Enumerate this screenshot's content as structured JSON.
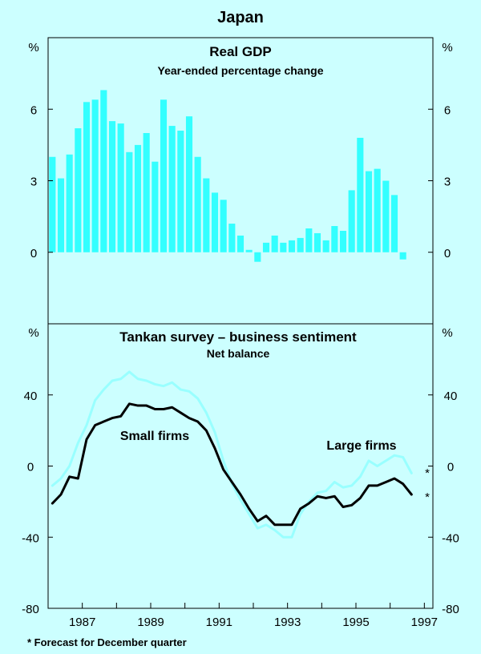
{
  "page_title": "Japan",
  "footnote": "*   Forecast for December quarter",
  "chart_data": [
    {
      "type": "bar",
      "title": "Real GDP",
      "subtitle": "Year-ended percentage change",
      "ylabel_left": "%",
      "ylabel_right": "%",
      "ylim": [
        -3,
        9
      ],
      "yticks": [
        0,
        3,
        6
      ],
      "series_color": "#33ffff",
      "x_start": 1986.625,
      "step": 0.25,
      "values": [
        4.0,
        3.1,
        4.1,
        5.2,
        6.3,
        6.4,
        6.8,
        5.5,
        5.4,
        4.2,
        4.5,
        5.0,
        3.8,
        6.4,
        5.3,
        5.1,
        5.7,
        4.0,
        3.1,
        2.5,
        2.2,
        1.2,
        0.7,
        0.1,
        -0.4,
        0.4,
        0.7,
        0.4,
        0.5,
        0.6,
        1.0,
        0.8,
        0.5,
        1.1,
        0.9,
        2.6,
        4.8,
        3.4,
        3.5,
        3.0,
        2.4,
        -0.3
      ]
    },
    {
      "type": "line",
      "title": "Tankan survey – business sentiment",
      "subtitle": "Net balance",
      "ylabel_left": "%",
      "ylabel_right": "%",
      "ylim": [
        -80,
        80
      ],
      "yticks": [
        -80,
        -40,
        0,
        40
      ],
      "x_start": 1986.625,
      "step": 0.25,
      "xticks": [
        "1987",
        "1989",
        "1991",
        "1993",
        "1995",
        "1997"
      ],
      "forecast_marker": "*",
      "series": [
        {
          "name": "Large firms",
          "color": "#99ffff",
          "values": [
            -11,
            -7,
            0,
            13,
            23,
            37,
            43,
            48,
            49,
            53,
            49,
            48,
            46,
            45,
            47,
            43,
            42,
            38,
            30,
            19,
            3,
            -10,
            -19,
            -27,
            -35,
            -33,
            -36,
            -40,
            -40,
            -27,
            -20,
            -15,
            -14,
            -9,
            -12,
            -11,
            -6,
            3,
            0,
            3,
            6,
            5,
            -4
          ]
        },
        {
          "name": "Small firms",
          "color": "#000000",
          "values": [
            -21,
            -16,
            -6,
            -7,
            15,
            23,
            25,
            27,
            28,
            35,
            34,
            34,
            32,
            32,
            33,
            30,
            27,
            25,
            20,
            10,
            -2,
            -9,
            -16,
            -24,
            -31,
            -28,
            -33,
            -33,
            -33,
            -24,
            -21,
            -17,
            -18,
            -17,
            -23,
            -22,
            -18,
            -11,
            -11,
            -9,
            -7,
            -10,
            -16
          ]
        }
      ]
    }
  ]
}
